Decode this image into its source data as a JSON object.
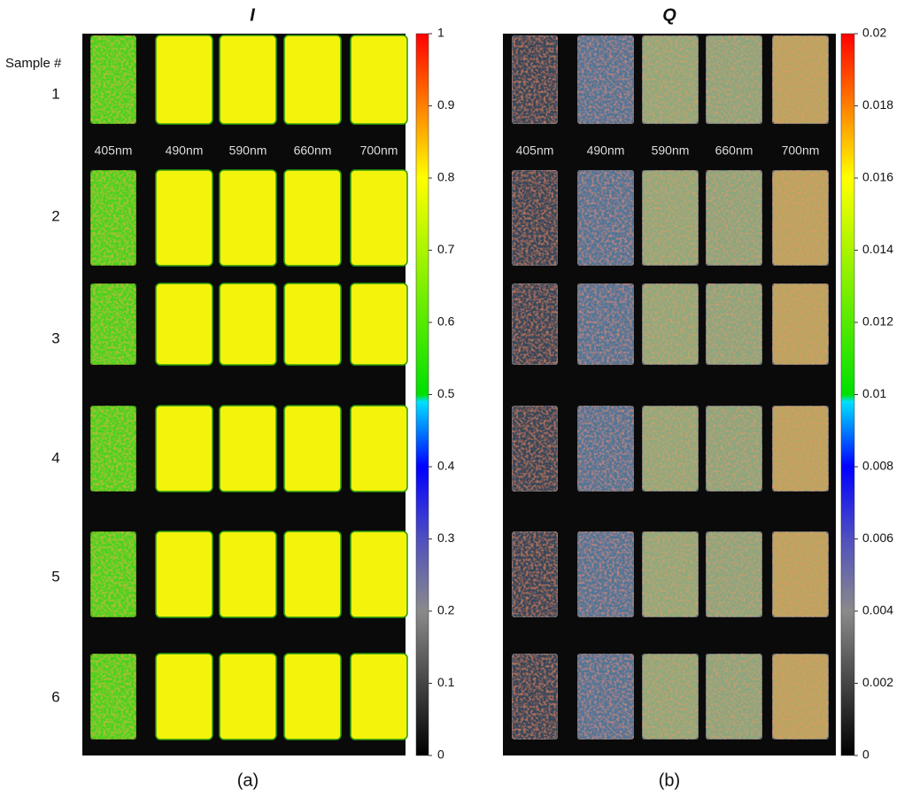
{
  "samples_header": "Sample #",
  "samples": [
    "1",
    "2",
    "3",
    "4",
    "5",
    "6"
  ],
  "wavelengths": [
    "405nm",
    "490nm",
    "590nm",
    "660nm",
    "700nm"
  ],
  "panels": [
    {
      "title": "I",
      "caption": "(a)",
      "colorbar": {
        "lim": [
          0,
          1
        ],
        "ticks": [
          0,
          0.1,
          0.2,
          0.3,
          0.4,
          0.5,
          0.6,
          0.7,
          0.8,
          0.9,
          1
        ]
      }
    },
    {
      "title": "Q",
      "caption": "(b)",
      "colorbar": {
        "lim": [
          0,
          0.02
        ],
        "ticks": [
          0,
          0.002,
          0.004,
          0.006,
          0.008,
          0.01,
          0.012,
          0.014,
          0.016,
          0.018,
          0.02
        ]
      }
    }
  ]
}
